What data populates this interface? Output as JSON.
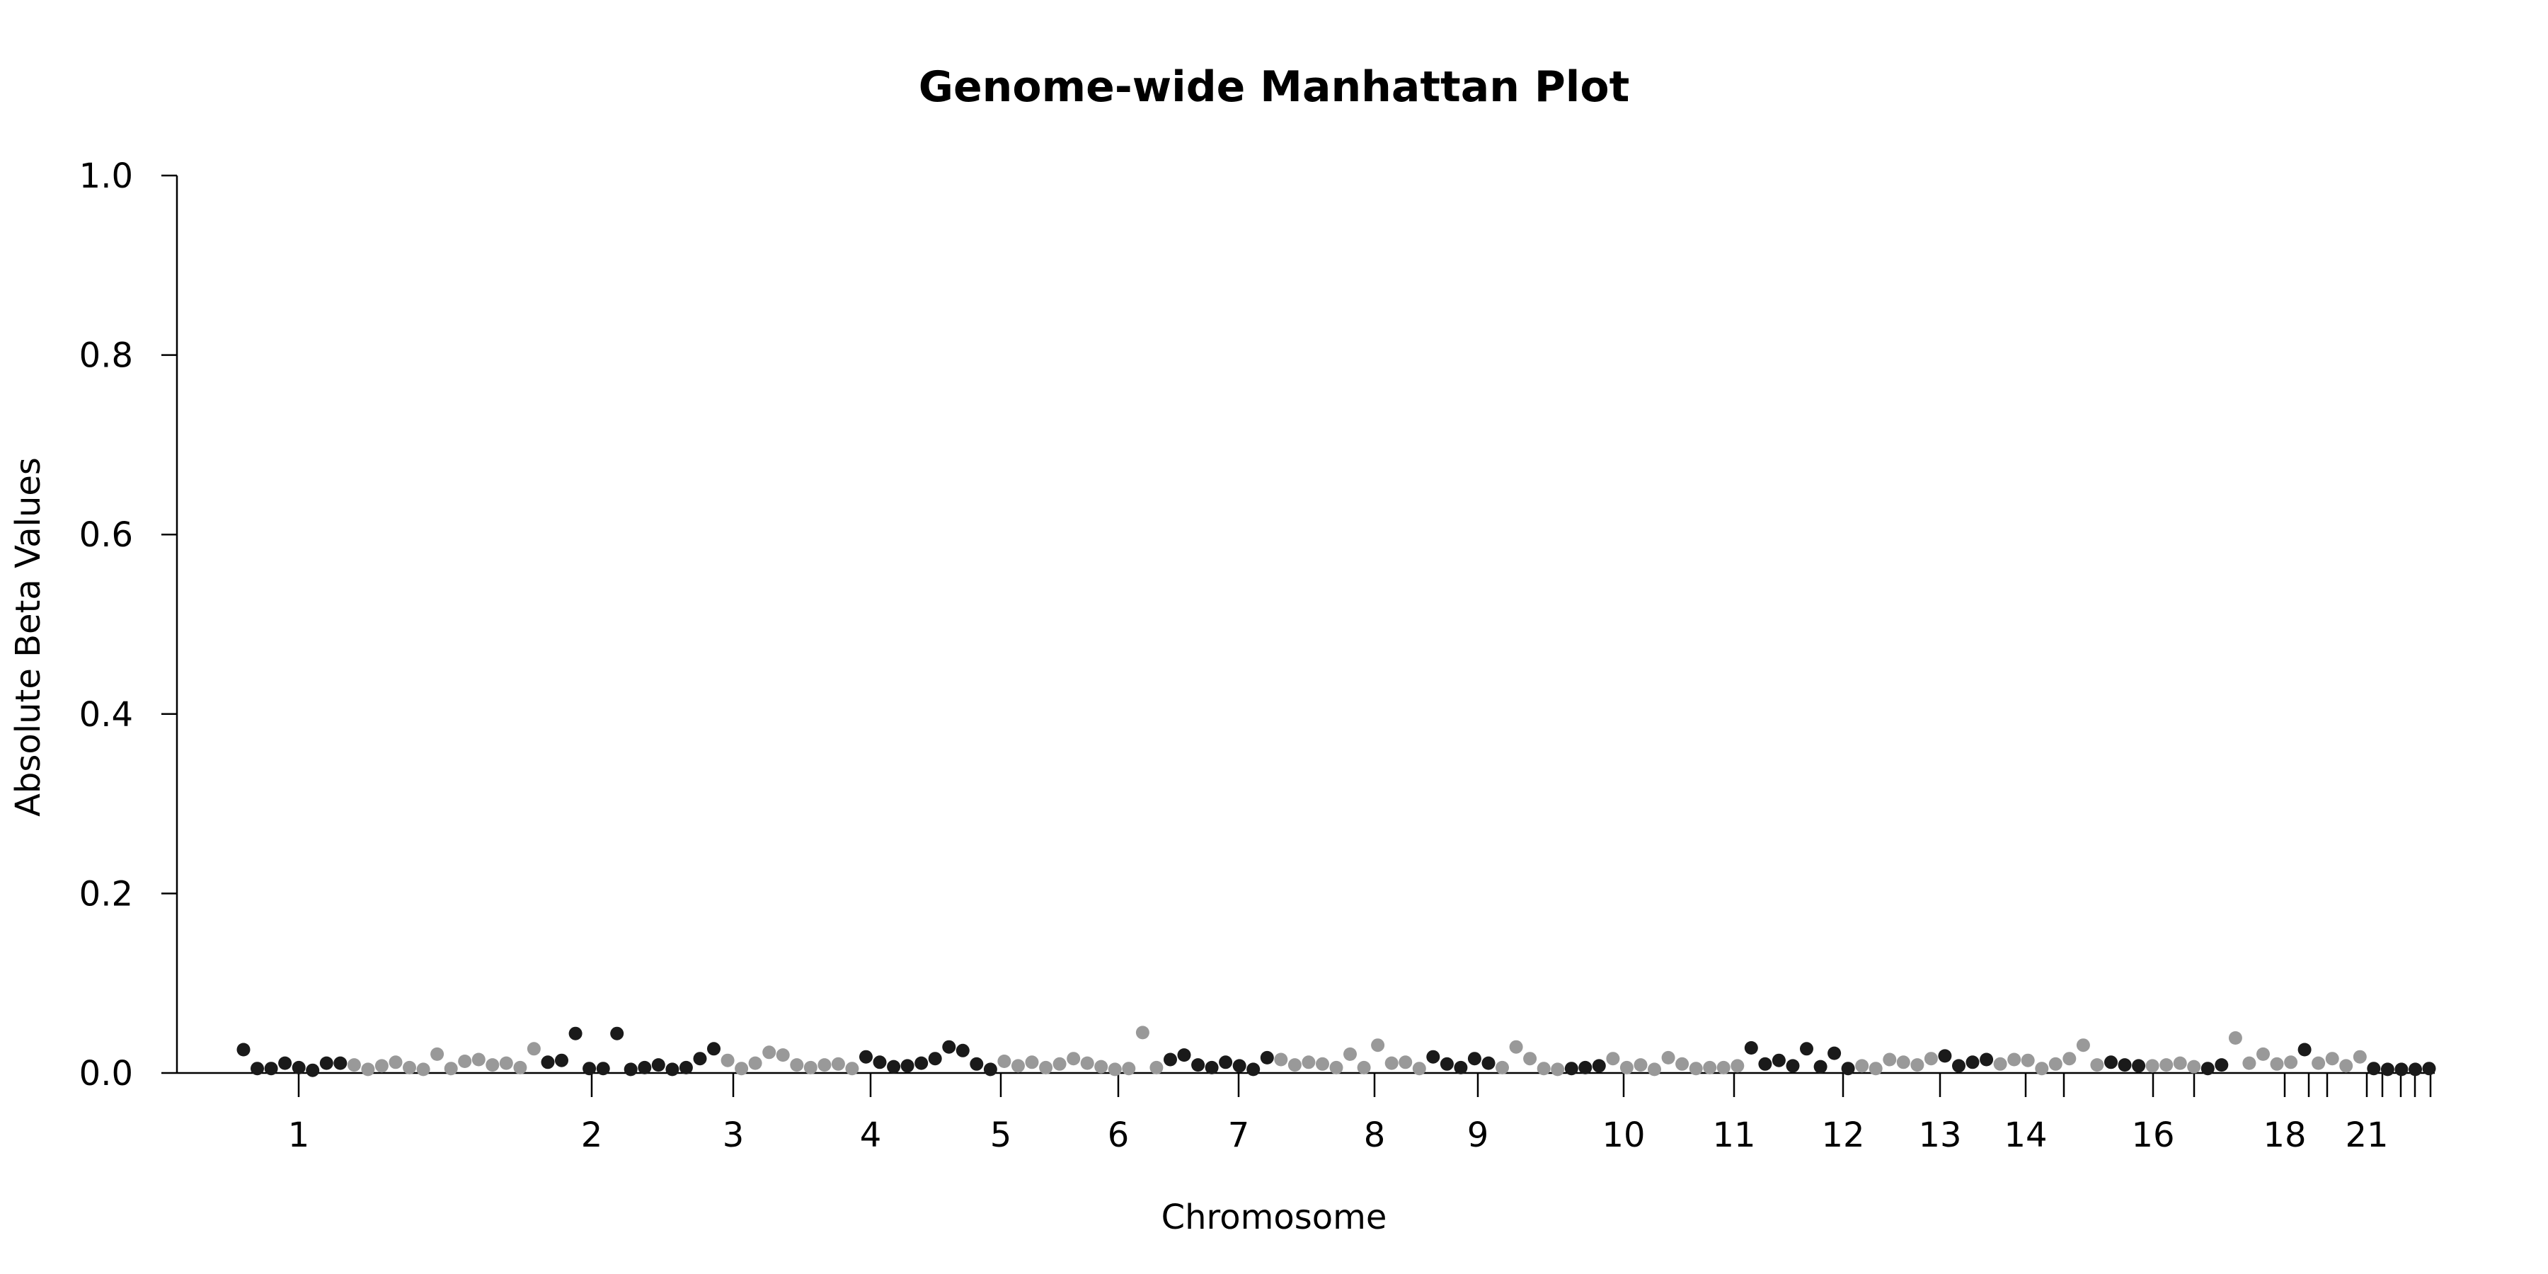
{
  "chart_data": {
    "type": "scatter",
    "title": "Genome-wide Manhattan Plot",
    "xlabel": "Chromosome",
    "ylabel": "Absolute Beta Values",
    "ylim": [
      0.0,
      1.0
    ],
    "yticks": [
      "0.0",
      "0.2",
      "0.4",
      "0.6",
      "0.8",
      "1.0"
    ],
    "x_tick_labels": [
      "1",
      "2",
      "3",
      "4",
      "5",
      "6",
      "7",
      "8",
      "9",
      "10",
      "11",
      "12",
      "13",
      "14",
      "16",
      "18",
      "21"
    ],
    "x_ticks_unlabeled_count": 8,
    "grid": false,
    "colors": {
      "odd_chromosome": "#1a1a1a",
      "even_chromosome": "#999999",
      "axis": "#000000"
    },
    "series": [
      {
        "values": [
          [
            0.026,
            "dark"
          ],
          [
            0.005,
            "dark"
          ],
          [
            0.005,
            "dark"
          ],
          [
            0.011,
            "dark"
          ],
          [
            0.006,
            "dark"
          ],
          [
            0.003,
            "dark"
          ],
          [
            0.011,
            "dark"
          ],
          [
            0.011,
            "dark"
          ],
          [
            0.009,
            "gray"
          ],
          [
            0.004,
            "gray"
          ],
          [
            0.008,
            "gray"
          ],
          [
            0.012,
            "gray"
          ],
          [
            0.006,
            "gray"
          ],
          [
            0.004,
            "gray"
          ],
          [
            0.021,
            "gray"
          ],
          [
            0.005,
            "gray"
          ],
          [
            0.013,
            "gray"
          ],
          [
            0.015,
            "gray"
          ],
          [
            0.009,
            "gray"
          ],
          [
            0.011,
            "gray"
          ],
          [
            0.006,
            "gray"
          ],
          [
            0.027,
            "gray"
          ],
          [
            0.012,
            "dark"
          ],
          [
            0.014,
            "dark"
          ],
          [
            0.044,
            "dark"
          ],
          [
            0.005,
            "dark"
          ],
          [
            0.005,
            "dark"
          ],
          [
            0.044,
            "dark"
          ],
          [
            0.004,
            "dark"
          ],
          [
            0.006,
            "dark"
          ],
          [
            0.009,
            "dark"
          ],
          [
            0.004,
            "dark"
          ],
          [
            0.006,
            "dark"
          ],
          [
            0.016,
            "dark"
          ],
          [
            0.027,
            "dark"
          ],
          [
            0.014,
            "gray"
          ],
          [
            0.005,
            "gray"
          ],
          [
            0.011,
            "gray"
          ],
          [
            0.023,
            "gray"
          ],
          [
            0.02,
            "gray"
          ],
          [
            0.009,
            "gray"
          ],
          [
            0.006,
            "gray"
          ],
          [
            0.009,
            "gray"
          ],
          [
            0.01,
            "gray"
          ],
          [
            0.005,
            "gray"
          ],
          [
            0.018,
            "dark"
          ],
          [
            0.012,
            "dark"
          ],
          [
            0.007,
            "dark"
          ],
          [
            0.008,
            "dark"
          ],
          [
            0.011,
            "dark"
          ],
          [
            0.016,
            "dark"
          ],
          [
            0.029,
            "dark"
          ],
          [
            0.025,
            "dark"
          ],
          [
            0.01,
            "dark"
          ],
          [
            0.004,
            "dark"
          ],
          [
            0.013,
            "gray"
          ],
          [
            0.008,
            "gray"
          ],
          [
            0.012,
            "gray"
          ],
          [
            0.006,
            "gray"
          ],
          [
            0.01,
            "gray"
          ],
          [
            0.016,
            "gray"
          ],
          [
            0.011,
            "gray"
          ],
          [
            0.007,
            "gray"
          ],
          [
            0.004,
            "gray"
          ],
          [
            0.005,
            "gray"
          ],
          [
            0.045,
            "gray"
          ],
          [
            0.006,
            "gray"
          ],
          [
            0.015,
            "dark"
          ],
          [
            0.02,
            "dark"
          ],
          [
            0.009,
            "dark"
          ],
          [
            0.006,
            "dark"
          ],
          [
            0.012,
            "dark"
          ],
          [
            0.008,
            "dark"
          ],
          [
            0.004,
            "dark"
          ],
          [
            0.017,
            "dark"
          ],
          [
            0.015,
            "gray"
          ],
          [
            0.009,
            "gray"
          ],
          [
            0.012,
            "gray"
          ],
          [
            0.01,
            "gray"
          ],
          [
            0.006,
            "gray"
          ],
          [
            0.021,
            "gray"
          ],
          [
            0.006,
            "gray"
          ],
          [
            0.031,
            "gray"
          ],
          [
            0.011,
            "gray"
          ],
          [
            0.012,
            "gray"
          ],
          [
            0.005,
            "gray"
          ],
          [
            0.018,
            "dark"
          ],
          [
            0.01,
            "dark"
          ],
          [
            0.006,
            "dark"
          ],
          [
            0.016,
            "dark"
          ],
          [
            0.011,
            "dark"
          ],
          [
            0.006,
            "gray"
          ],
          [
            0.029,
            "gray"
          ],
          [
            0.016,
            "gray"
          ],
          [
            0.005,
            "gray"
          ],
          [
            0.004,
            "gray"
          ],
          [
            0.005,
            "dark"
          ],
          [
            0.006,
            "dark"
          ],
          [
            0.008,
            "dark"
          ],
          [
            0.016,
            "gray"
          ],
          [
            0.006,
            "gray"
          ],
          [
            0.009,
            "gray"
          ],
          [
            0.004,
            "gray"
          ],
          [
            0.017,
            "gray"
          ],
          [
            0.01,
            "gray"
          ],
          [
            0.005,
            "gray"
          ],
          [
            0.006,
            "gray"
          ],
          [
            0.006,
            "gray"
          ],
          [
            0.008,
            "gray"
          ],
          [
            0.028,
            "dark"
          ],
          [
            0.01,
            "dark"
          ],
          [
            0.014,
            "dark"
          ],
          [
            0.008,
            "dark"
          ],
          [
            0.027,
            "dark"
          ],
          [
            0.007,
            "dark"
          ],
          [
            0.022,
            "dark"
          ],
          [
            0.005,
            "dark"
          ],
          [
            0.008,
            "gray"
          ],
          [
            0.005,
            "gray"
          ],
          [
            0.015,
            "gray"
          ],
          [
            0.012,
            "gray"
          ],
          [
            0.009,
            "gray"
          ],
          [
            0.016,
            "gray"
          ],
          [
            0.019,
            "dark"
          ],
          [
            0.008,
            "dark"
          ],
          [
            0.012,
            "dark"
          ],
          [
            0.015,
            "dark"
          ],
          [
            0.01,
            "gray"
          ],
          [
            0.015,
            "gray"
          ],
          [
            0.014,
            "gray"
          ],
          [
            0.005,
            "gray"
          ],
          [
            0.01,
            "gray"
          ],
          [
            0.016,
            "gray"
          ],
          [
            0.031,
            "gray"
          ],
          [
            0.009,
            "gray"
          ],
          [
            0.012,
            "dark"
          ],
          [
            0.009,
            "dark"
          ],
          [
            0.008,
            "dark"
          ],
          [
            0.008,
            "gray"
          ],
          [
            0.009,
            "gray"
          ],
          [
            0.011,
            "gray"
          ],
          [
            0.007,
            "gray"
          ],
          [
            0.005,
            "dark"
          ],
          [
            0.009,
            "dark"
          ],
          [
            0.039,
            "gray"
          ],
          [
            0.011,
            "gray"
          ],
          [
            0.021,
            "gray"
          ],
          [
            0.01,
            "gray"
          ],
          [
            0.012,
            "gray"
          ],
          [
            0.026,
            "dark"
          ],
          [
            0.011,
            "gray"
          ],
          [
            0.016,
            "gray"
          ],
          [
            0.008,
            "gray"
          ],
          [
            0.018,
            "gray"
          ],
          [
            0.005,
            "dark"
          ],
          [
            0.004,
            "dark"
          ],
          [
            0.004,
            "dark"
          ],
          [
            0.004,
            "dark"
          ],
          [
            0.005,
            "dark"
          ]
        ]
      }
    ]
  }
}
